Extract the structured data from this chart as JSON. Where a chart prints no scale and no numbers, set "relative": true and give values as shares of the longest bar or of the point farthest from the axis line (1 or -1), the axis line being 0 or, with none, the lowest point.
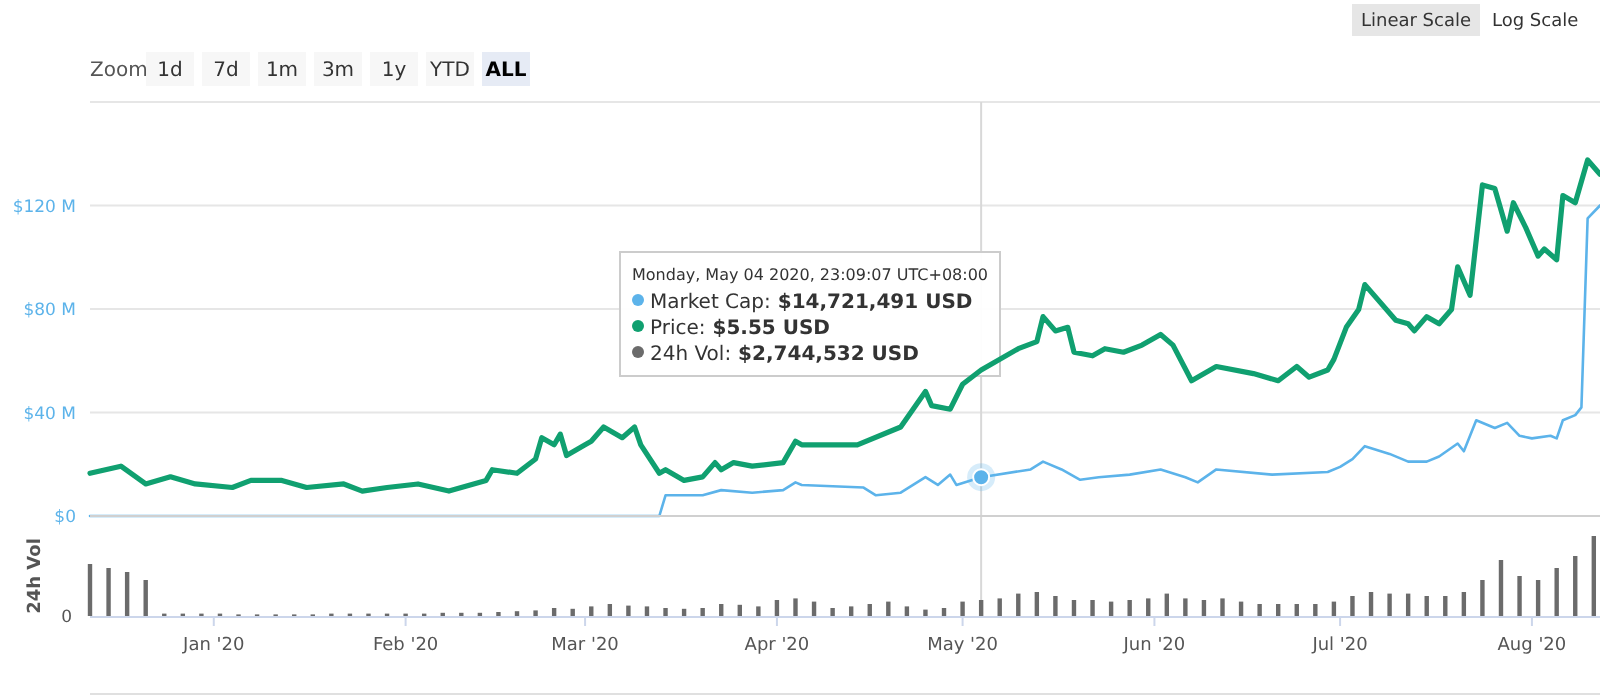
{
  "chart_data": [
    {
      "type": "line",
      "xlim": [
        "2019-12-12",
        "2020-08-12"
      ],
      "ylim": [
        0,
        160
      ],
      "yticks": [
        {
          "value": 0,
          "label": "$0"
        },
        {
          "value": 40,
          "label": "$40 M"
        },
        {
          "value": 80,
          "label": "$80 M"
        },
        {
          "value": 120,
          "label": "$120 M"
        }
      ],
      "grid": "y",
      "tick_labels": "y",
      "series": [
        {
          "color": "#5cb3ea",
          "x": [
            "2019-12-12",
            "2020-03-13",
            "2020-03-14",
            "2020-03-20",
            "2020-03-23",
            "2020-03-28",
            "2020-04-02",
            "2020-04-04",
            "2020-04-05",
            "2020-04-15",
            "2020-04-17",
            "2020-04-21",
            "2020-04-25",
            "2020-04-27",
            "2020-04-29",
            "2020-04-30",
            "2020-05-04",
            "2020-05-12",
            "2020-05-14",
            "2020-05-17",
            "2020-05-20",
            "2020-05-23",
            "2020-05-28",
            "2020-06-02",
            "2020-06-06",
            "2020-06-08",
            "2020-06-11",
            "2020-06-20",
            "2020-06-29",
            "2020-07-01",
            "2020-07-03",
            "2020-07-05",
            "2020-07-09",
            "2020-07-12",
            "2020-07-15",
            "2020-07-17",
            "2020-07-20",
            "2020-07-21",
            "2020-07-23",
            "2020-07-26",
            "2020-07-28",
            "2020-07-30",
            "2020-08-01",
            "2020-08-04",
            "2020-08-05",
            "2020-08-06",
            "2020-08-08",
            "2020-08-09",
            "2020-08-10",
            "2020-08-12"
          ],
          "values": [
            0,
            0,
            8,
            8,
            10,
            9,
            10,
            13,
            12,
            11,
            8,
            9,
            15,
            12,
            16,
            12,
            15,
            18,
            21,
            18,
            14,
            15,
            16,
            18,
            15,
            13,
            18,
            16,
            17,
            19,
            22,
            27,
            24,
            21,
            21,
            23,
            28,
            25,
            37,
            34,
            36,
            31,
            30,
            31,
            30,
            37,
            39,
            42,
            115,
            120
          ]
        }
      ],
      "ref_lines": [
        {
          "axis": "x",
          "value": "2020-05-04",
          "color": "#d8d8d8"
        }
      ],
      "annotations": [
        "Monday, May 04 2020, 23:09:07 UTC+08:00",
        "Market Cap: $14,721,491 USD",
        "Price: $5.55 USD",
        "24h Vol: $2,744,532 USD",
        "Zoom",
        "1d",
        "7d",
        "1m",
        "3m",
        "1y",
        "YTD",
        "ALL",
        "Linear Scale",
        "Log Scale"
      ]
    },
    {
      "type": "line",
      "relative": true,
      "xlim": [
        "2019-12-12",
        "2020-08-12"
      ],
      "tick_labels": false,
      "series": [
        {
          "color": "#10a070",
          "x": [
            "2019-12-12",
            "2019-12-17",
            "2019-12-21",
            "2019-12-25",
            "2019-12-29",
            "2020-01-04",
            "2020-01-07",
            "2020-01-12",
            "2020-01-16",
            "2020-01-22",
            "2020-01-25",
            "2020-01-29",
            "2020-02-03",
            "2020-02-08",
            "2020-02-14",
            "2020-02-15",
            "2020-02-19",
            "2020-02-22",
            "2020-02-23",
            "2020-02-25",
            "2020-02-26",
            "2020-02-27",
            "2020-03-01",
            "2020-03-02",
            "2020-03-04",
            "2020-03-07",
            "2020-03-09",
            "2020-03-10",
            "2020-03-13",
            "2020-03-14",
            "2020-03-17",
            "2020-03-20",
            "2020-03-22",
            "2020-03-23",
            "2020-03-25",
            "2020-03-28",
            "2020-04-02",
            "2020-04-04",
            "2020-04-05",
            "2020-04-14",
            "2020-04-21",
            "2020-04-25",
            "2020-04-26",
            "2020-04-29",
            "2020-05-01",
            "2020-05-04",
            "2020-05-10",
            "2020-05-13",
            "2020-05-14",
            "2020-05-16",
            "2020-05-18",
            "2020-05-19",
            "2020-05-22",
            "2020-05-24",
            "2020-05-27",
            "2020-05-30",
            "2020-06-02",
            "2020-06-04",
            "2020-06-07",
            "2020-06-11",
            "2020-06-17",
            "2020-06-21",
            "2020-06-24",
            "2020-06-26",
            "2020-06-29",
            "2020-06-30",
            "2020-07-02",
            "2020-07-04",
            "2020-07-05",
            "2020-07-10",
            "2020-07-12",
            "2020-07-13",
            "2020-07-15",
            "2020-07-17",
            "2020-07-19",
            "2020-07-20",
            "2020-07-22",
            "2020-07-24",
            "2020-07-26",
            "2020-07-28",
            "2020-07-29",
            "2020-07-31",
            "2020-08-02",
            "2020-08-03",
            "2020-08-05",
            "2020-08-06",
            "2020-08-08",
            "2020-08-10",
            "2020-08-12"
          ],
          "values": [
            0.12,
            0.14,
            0.09,
            0.11,
            0.09,
            0.08,
            0.1,
            0.1,
            0.08,
            0.09,
            0.07,
            0.08,
            0.09,
            0.07,
            0.1,
            0.13,
            0.12,
            0.16,
            0.22,
            0.2,
            0.23,
            0.17,
            0.2,
            0.21,
            0.25,
            0.22,
            0.25,
            0.2,
            0.12,
            0.13,
            0.1,
            0.11,
            0.15,
            0.13,
            0.15,
            0.14,
            0.15,
            0.21,
            0.2,
            0.2,
            0.25,
            0.35,
            0.31,
            0.3,
            0.37,
            0.41,
            0.47,
            0.49,
            0.56,
            0.52,
            0.53,
            0.46,
            0.45,
            0.47,
            0.46,
            0.48,
            0.51,
            0.48,
            0.38,
            0.42,
            0.4,
            0.38,
            0.42,
            0.39,
            0.41,
            0.44,
            0.53,
            0.58,
            0.65,
            0.55,
            0.54,
            0.52,
            0.56,
            0.54,
            0.58,
            0.7,
            0.62,
            0.93,
            0.92,
            0.8,
            0.88,
            0.81,
            0.73,
            0.75,
            0.72,
            0.9,
            0.88,
            1,
            0.96
          ]
        }
      ]
    },
    {
      "type": "bar",
      "relative": true,
      "ylabel": "24h Vol",
      "tick_labels": "x",
      "xlim": [
        "2019-12-12",
        "2020-08-12"
      ],
      "xticks": [
        {
          "value": "2020-01-01",
          "label": "Jan '20"
        },
        {
          "value": "2020-02-01",
          "label": "Feb '20"
        },
        {
          "value": "2020-03-01",
          "label": "Mar '20"
        },
        {
          "value": "2020-04-01",
          "label": "Apr '20"
        },
        {
          "value": "2020-05-01",
          "label": "May '20"
        },
        {
          "value": "2020-06-01",
          "label": "Jun '20"
        },
        {
          "value": "2020-07-01",
          "label": "Jul '20"
        },
        {
          "value": "2020-08-01",
          "label": "Aug '20"
        }
      ],
      "series": [
        {
          "color": "#6b6b6b",
          "x": [
            "2019-12-12",
            "2019-12-15",
            "2019-12-18",
            "2019-12-21",
            "2019-12-24",
            "2019-12-27",
            "2019-12-30",
            "2020-01-02",
            "2020-01-05",
            "2020-01-08",
            "2020-01-11",
            "2020-01-14",
            "2020-01-17",
            "2020-01-20",
            "2020-01-23",
            "2020-01-26",
            "2020-01-29",
            "2020-02-01",
            "2020-02-04",
            "2020-02-07",
            "2020-02-10",
            "2020-02-13",
            "2020-02-16",
            "2020-02-19",
            "2020-02-22",
            "2020-02-25",
            "2020-02-28",
            "2020-03-02",
            "2020-03-05",
            "2020-03-08",
            "2020-03-11",
            "2020-03-14",
            "2020-03-17",
            "2020-03-20",
            "2020-03-23",
            "2020-03-26",
            "2020-03-29",
            "2020-04-01",
            "2020-04-04",
            "2020-04-07",
            "2020-04-10",
            "2020-04-13",
            "2020-04-16",
            "2020-04-19",
            "2020-04-22",
            "2020-04-25",
            "2020-04-28",
            "2020-05-01",
            "2020-05-04",
            "2020-05-07",
            "2020-05-10",
            "2020-05-13",
            "2020-05-16",
            "2020-05-19",
            "2020-05-22",
            "2020-05-25",
            "2020-05-28",
            "2020-05-31",
            "2020-06-03",
            "2020-06-06",
            "2020-06-09",
            "2020-06-12",
            "2020-06-15",
            "2020-06-18",
            "2020-06-21",
            "2020-06-24",
            "2020-06-27",
            "2020-06-30",
            "2020-07-03",
            "2020-07-06",
            "2020-07-09",
            "2020-07-12",
            "2020-07-15",
            "2020-07-18",
            "2020-07-21",
            "2020-07-24",
            "2020-07-27",
            "2020-07-30",
            "2020-08-02",
            "2020-08-05",
            "2020-08-08",
            "2020-08-11"
          ],
          "values": [
            0.65,
            0.6,
            0.55,
            0.45,
            0.03,
            0.03,
            0.03,
            0.03,
            0.02,
            0.02,
            0.02,
            0.02,
            0.02,
            0.03,
            0.03,
            0.03,
            0.03,
            0.03,
            0.03,
            0.04,
            0.04,
            0.04,
            0.05,
            0.06,
            0.07,
            0.1,
            0.09,
            0.12,
            0.15,
            0.13,
            0.12,
            0.1,
            0.09,
            0.1,
            0.15,
            0.14,
            0.12,
            0.2,
            0.22,
            0.18,
            0.1,
            0.12,
            0.15,
            0.18,
            0.12,
            0.08,
            0.1,
            0.18,
            0.2,
            0.22,
            0.28,
            0.3,
            0.25,
            0.2,
            0.2,
            0.18,
            0.2,
            0.22,
            0.28,
            0.22,
            0.2,
            0.22,
            0.18,
            0.15,
            0.15,
            0.15,
            0.15,
            0.18,
            0.25,
            0.3,
            0.28,
            0.28,
            0.25,
            0.25,
            0.3,
            0.45,
            0.7,
            0.5,
            0.45,
            0.6,
            0.75,
            1.0
          ]
        }
      ],
      "annotations": [
        "0"
      ]
    }
  ]
}
